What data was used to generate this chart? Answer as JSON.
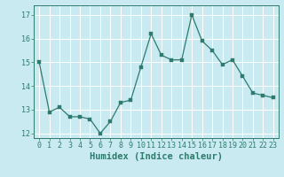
{
  "x": [
    0,
    1,
    2,
    3,
    4,
    5,
    6,
    7,
    8,
    9,
    10,
    11,
    12,
    13,
    14,
    15,
    16,
    17,
    18,
    19,
    20,
    21,
    22,
    23
  ],
  "y": [
    15.0,
    12.9,
    13.1,
    12.7,
    12.7,
    12.6,
    12.0,
    12.5,
    13.3,
    13.4,
    14.8,
    16.2,
    15.3,
    15.1,
    15.1,
    17.0,
    15.9,
    15.5,
    14.9,
    15.1,
    14.4,
    13.7,
    13.6,
    13.5
  ],
  "line_color": "#2e7b6e",
  "marker": "s",
  "marker_size": 2.5,
  "bg_color": "#c8eaf0",
  "grid_color": "#ffffff",
  "xlabel": "Humidex (Indice chaleur)",
  "xlim": [
    -0.5,
    23.5
  ],
  "ylim": [
    11.8,
    17.4
  ],
  "yticks": [
    12,
    13,
    14,
    15,
    16,
    17
  ],
  "xticks": [
    0,
    1,
    2,
    3,
    4,
    5,
    6,
    7,
    8,
    9,
    10,
    11,
    12,
    13,
    14,
    15,
    16,
    17,
    18,
    19,
    20,
    21,
    22,
    23
  ],
  "tick_fontsize": 6.0,
  "xlabel_fontsize": 7.5
}
